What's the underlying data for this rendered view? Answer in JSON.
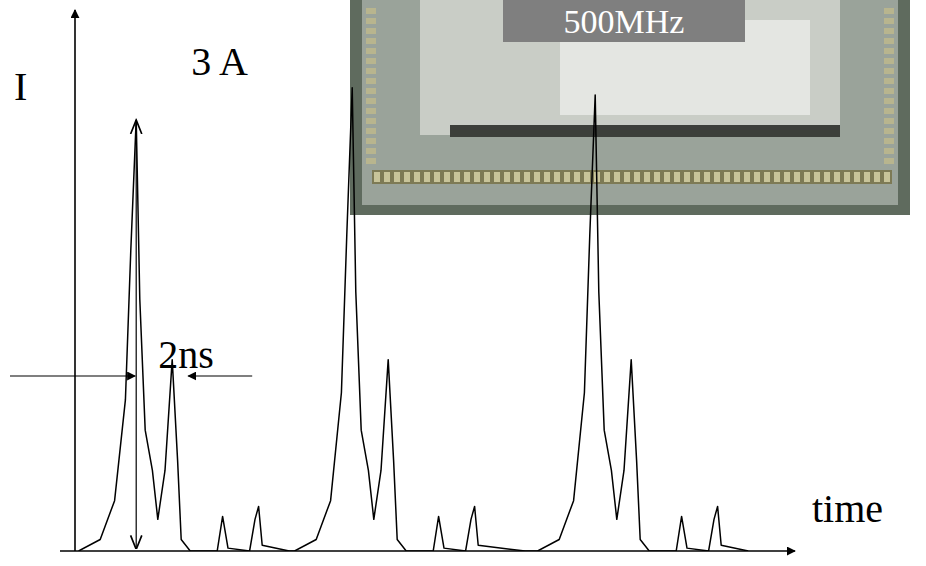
{
  "chart_data": {
    "type": "line",
    "x_label": "time",
    "y_label": "I",
    "annotations": [
      "3 A",
      "2ns",
      "500MHz"
    ],
    "xlim": [
      0,
      40
    ],
    "ylim": [
      0,
      3.76
    ],
    "tick_labels": false,
    "grid": false,
    "x": [
      0.2,
      1.4,
      2.2,
      2.8,
      3.1,
      3.4,
      3.6,
      3.9,
      4.3,
      4.6,
      5.0,
      5.4,
      5.7,
      5.9,
      6.4,
      7.9,
      8.2,
      8.5,
      9.7,
      10.0,
      10.2,
      10.4,
      11.9,
      12.2,
      13.4,
      14.2,
      14.8,
      15.1,
      15.4,
      15.6,
      15.9,
      16.3,
      16.6,
      17.0,
      17.4,
      17.7,
      17.9,
      18.4,
      19.9,
      20.2,
      20.5,
      21.7,
      22.0,
      22.2,
      22.4,
      25.0,
      25.7,
      26.9,
      27.7,
      28.3,
      28.6,
      28.9,
      29.1,
      29.4,
      29.8,
      30.1,
      30.5,
      30.9,
      31.2,
      31.4,
      31.9,
      33.4,
      33.7,
      34.0,
      35.2,
      35.5,
      35.7,
      35.9,
      37.4
    ],
    "series": [
      {
        "color": "#000000",
        "line_style": "solid",
        "values": [
          0,
          0.08,
          0.35,
          1.05,
          2.09,
          3.0,
          1.75,
          0.84,
          0.56,
          0.22,
          0.56,
          1.33,
          0.63,
          0.08,
          0,
          0,
          0.24,
          0.02,
          0,
          0.22,
          0.31,
          0.04,
          0,
          0,
          0.08,
          0.35,
          1.1,
          2.2,
          3.22,
          1.8,
          0.84,
          0.56,
          0.22,
          0.56,
          1.33,
          0.63,
          0.08,
          0,
          0,
          0.24,
          0.02,
          0,
          0.22,
          0.31,
          0.04,
          0,
          0,
          0.08,
          0.35,
          1.1,
          2.2,
          3.17,
          1.8,
          0.84,
          0.56,
          0.22,
          0.56,
          1.33,
          0.63,
          0.08,
          0,
          0,
          0.24,
          0.02,
          0,
          0.22,
          0.31,
          0.04,
          0
        ]
      }
    ]
  }
}
